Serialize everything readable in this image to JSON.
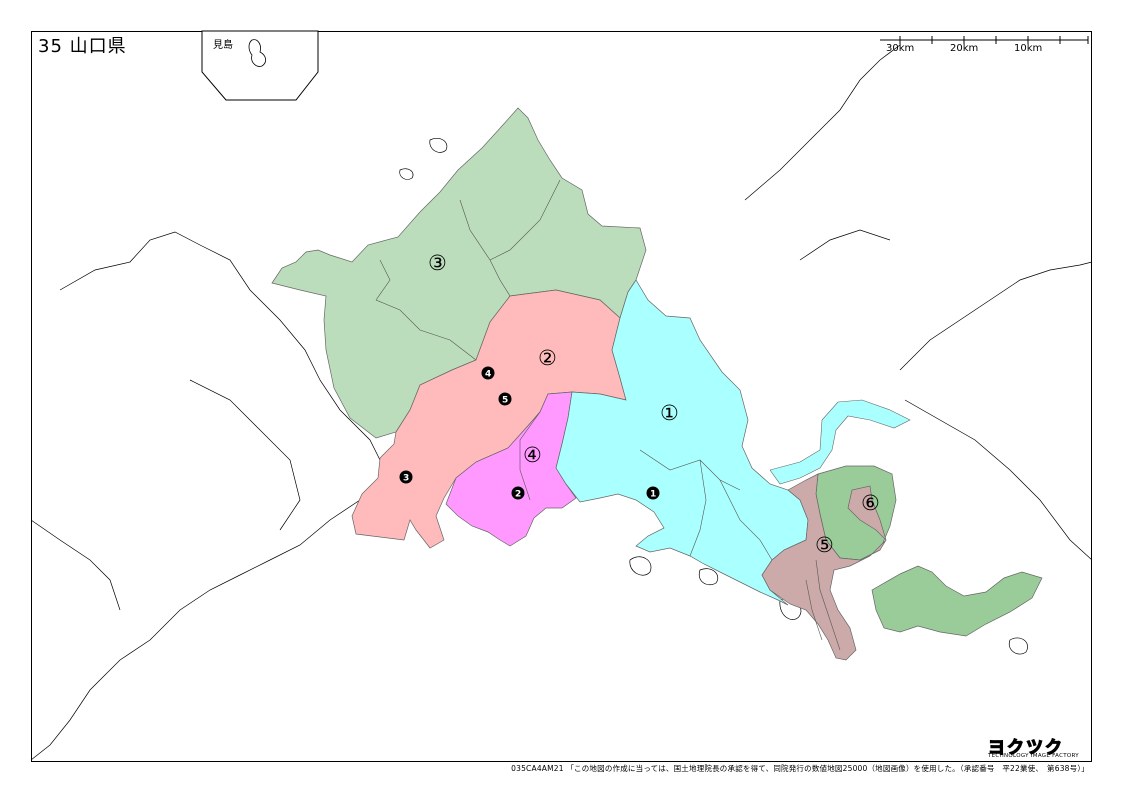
{
  "title": "35 山口県",
  "inset": {
    "label": "見島"
  },
  "scale": {
    "labels": [
      "30km",
      "20km",
      "10km"
    ]
  },
  "regions": [
    {
      "id": "1",
      "marker": "①",
      "color": "#aaffff"
    },
    {
      "id": "2",
      "marker": "②",
      "color": "#ffbbbb"
    },
    {
      "id": "3",
      "marker": "③",
      "color": "#bbddbb"
    },
    {
      "id": "4",
      "marker": "④",
      "color": "#ff99ff"
    },
    {
      "id": "5",
      "marker": "⑤",
      "color": "#ccaaaa"
    },
    {
      "id": "6",
      "marker": "⑥",
      "color": "#99cc99"
    }
  ],
  "points": [
    {
      "id": "1",
      "marker": "❶"
    },
    {
      "id": "2",
      "marker": "❷"
    },
    {
      "id": "3",
      "marker": "❸"
    },
    {
      "id": "4",
      "marker": "❹"
    },
    {
      "id": "5",
      "marker": "❺"
    }
  ],
  "footer": "035CA4AM21 「この地図の作成に当っては、国土地理院長の承認を得て、同院発行の数値地図25000（地図画像）を使用した。（承認番号　平22業使、　第638号）」",
  "logo": {
    "main": "ヨクツク",
    "sub": "TECHNOLOGY IMAGE FACTORY"
  }
}
